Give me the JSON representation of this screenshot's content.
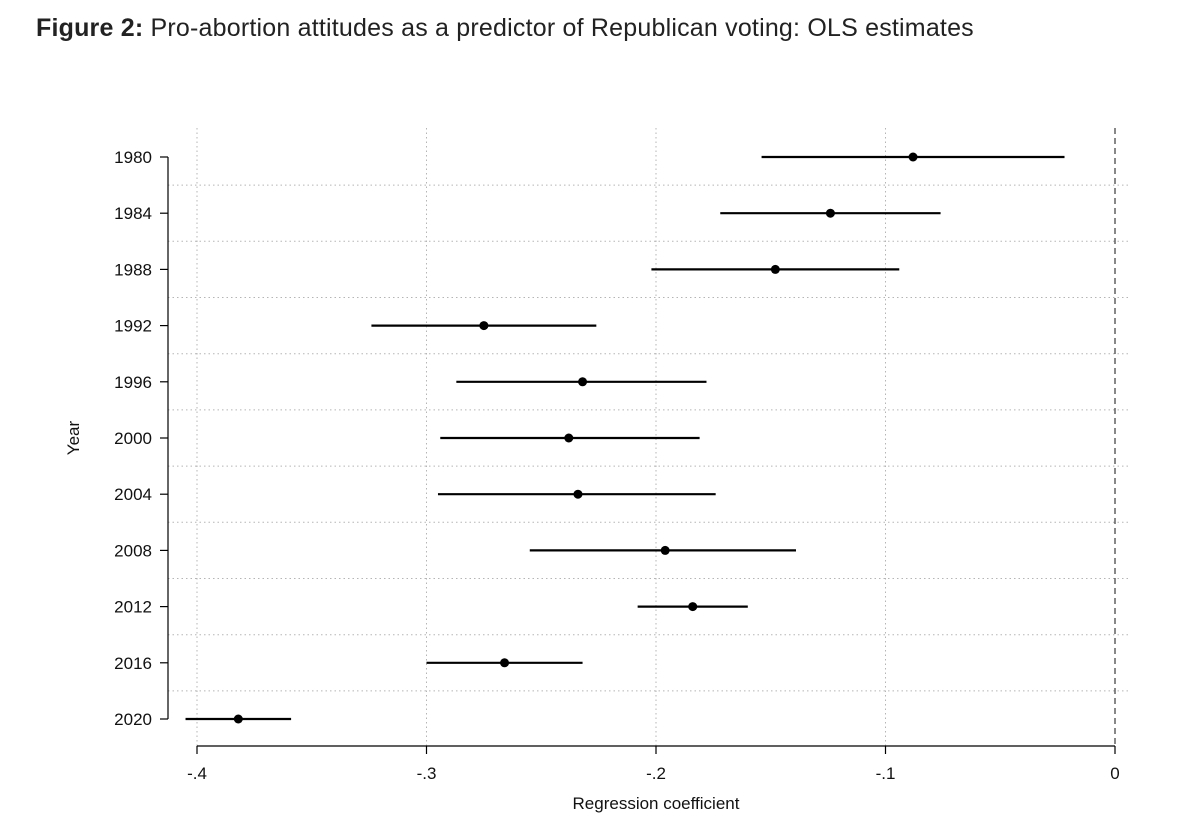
{
  "figure": {
    "prefix": "Figure 2:",
    "caption": " Pro-abortion attitudes as a predictor of Republican voting: OLS estimates"
  },
  "chart_data": {
    "type": "scatter",
    "style": "coefficient-plot-with-confidence-intervals",
    "title": "Figure 2: Pro-abortion attitudes as a predictor of Republican voting: OLS estimates",
    "xlabel": "Regression coefficient",
    "ylabel": "Year",
    "xlim": [
      -0.405,
      0.002
    ],
    "xticks": [
      -0.4,
      -0.3,
      -0.2,
      -0.1,
      0
    ],
    "xtick_labels": [
      "-.4",
      "-.3",
      "-.2",
      "-.1",
      "0"
    ],
    "reference_line_x": 0,
    "grid": true,
    "points": [
      {
        "year": "1980",
        "estimate": -0.088,
        "ci_low": -0.154,
        "ci_high": -0.022
      },
      {
        "year": "1984",
        "estimate": -0.124,
        "ci_low": -0.172,
        "ci_high": -0.076
      },
      {
        "year": "1988",
        "estimate": -0.148,
        "ci_low": -0.202,
        "ci_high": -0.094
      },
      {
        "year": "1992",
        "estimate": -0.275,
        "ci_low": -0.324,
        "ci_high": -0.226
      },
      {
        "year": "1996",
        "estimate": -0.232,
        "ci_low": -0.287,
        "ci_high": -0.178
      },
      {
        "year": "2000",
        "estimate": -0.238,
        "ci_low": -0.294,
        "ci_high": -0.181
      },
      {
        "year": "2004",
        "estimate": -0.234,
        "ci_low": -0.295,
        "ci_high": -0.174
      },
      {
        "year": "2008",
        "estimate": -0.196,
        "ci_low": -0.255,
        "ci_high": -0.139
      },
      {
        "year": "2012",
        "estimate": -0.184,
        "ci_low": -0.208,
        "ci_high": -0.16
      },
      {
        "year": "2016",
        "estimate": -0.266,
        "ci_low": -0.3,
        "ci_high": -0.232
      },
      {
        "year": "2020",
        "estimate": -0.382,
        "ci_low": -0.405,
        "ci_high": -0.359
      }
    ]
  }
}
